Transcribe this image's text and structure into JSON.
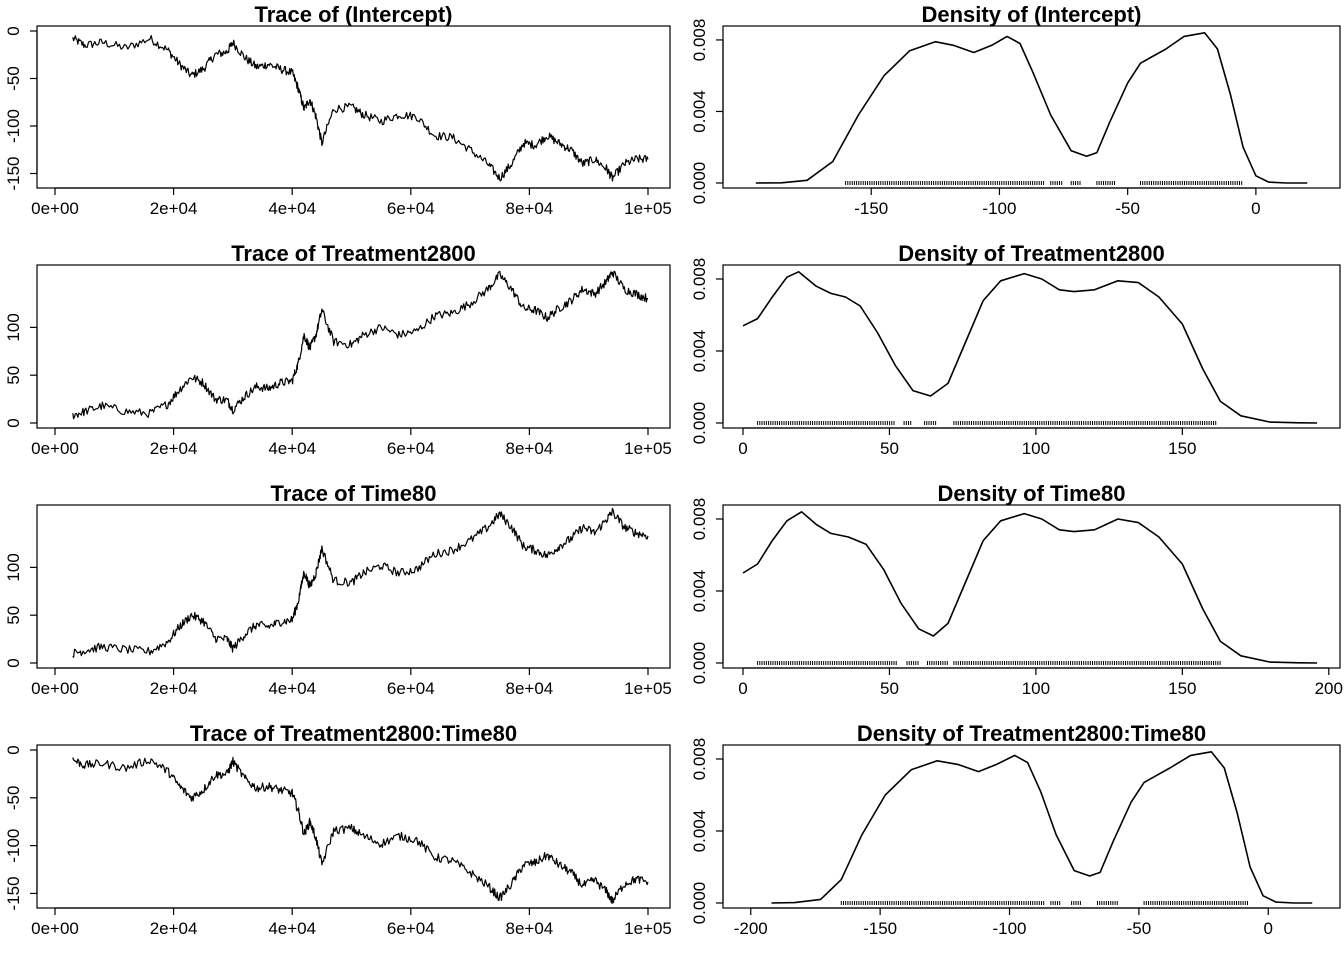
{
  "chart_data": [
    {
      "type": "line",
      "title": "Trace of (Intercept)",
      "xlim": [
        0,
        100000
      ],
      "ylim": [
        -160,
        0
      ],
      "xticks": [
        0,
        20000,
        40000,
        60000,
        80000,
        100000
      ],
      "xtick_labels": [
        "0e+00",
        "2e+04",
        "4e+04",
        "6e+04",
        "8e+04",
        "1e+05"
      ],
      "yticks": [
        0,
        -50,
        -100,
        -150
      ],
      "ytick_labels": [
        "0",
        "-50",
        "-100",
        "-150"
      ],
      "series": [
        {
          "x": [
            3000,
            5000,
            8000,
            12000,
            16000,
            19000,
            21000,
            23000,
            25000,
            27000,
            29000,
            30000,
            32000,
            34000,
            36000,
            38000,
            40000,
            41000,
            42000,
            43000,
            44000,
            45000,
            47000,
            50000,
            52000,
            55000,
            58000,
            61000,
            64000,
            67000,
            70000,
            73000,
            75000,
            77000,
            79000,
            81000,
            83000,
            85000,
            87000,
            89000,
            91000,
            93000,
            94000,
            96000,
            98000,
            100000
          ],
          "y": [
            -8,
            -15,
            -12,
            -18,
            -8,
            -20,
            -35,
            -47,
            -40,
            -25,
            -22,
            -12,
            -28,
            -38,
            -35,
            -40,
            -44,
            -60,
            -82,
            -72,
            -90,
            -118,
            -82,
            -80,
            -88,
            -95,
            -88,
            -90,
            -110,
            -112,
            -125,
            -140,
            -155,
            -140,
            -118,
            -120,
            -110,
            -118,
            -125,
            -140,
            -135,
            -145,
            -155,
            -140,
            -135,
            -135
          ]
        }
      ]
    },
    {
      "type": "area",
      "title": "Density of (Intercept)",
      "xlim": [
        -200,
        25
      ],
      "ylim": [
        0,
        0.0085
      ],
      "xticks": [
        -150,
        -100,
        -50,
        0
      ],
      "xtick_labels": [
        "-150",
        "-100",
        "-50",
        "0"
      ],
      "yticks": [
        0,
        0.004,
        0.008
      ],
      "ytick_labels": [
        "0.000",
        "0.004",
        "0.008"
      ],
      "series": [
        {
          "x": [
            -195,
            -185,
            -175,
            -165,
            -155,
            -145,
            -135,
            -125,
            -118,
            -110,
            -103,
            -97,
            -92,
            -87,
            -80,
            -72,
            -66,
            -62,
            -57,
            -50,
            -45,
            -40,
            -35,
            -28,
            -20,
            -15,
            -10,
            -5,
            0,
            5,
            12,
            20
          ],
          "y": [
            0,
            1e-05,
            0.00015,
            0.0012,
            0.0038,
            0.006,
            0.0074,
            0.0079,
            0.0077,
            0.0073,
            0.0077,
            0.0082,
            0.0078,
            0.0062,
            0.0038,
            0.0018,
            0.0015,
            0.0017,
            0.0034,
            0.0056,
            0.0067,
            0.0071,
            0.0075,
            0.0082,
            0.0084,
            0.0075,
            0.005,
            0.002,
            0.0004,
            5e-05,
            0,
            0
          ]
        }
      ],
      "rug_ranges": [
        [
          -160,
          -82
        ],
        [
          -80,
          -75
        ],
        [
          -72,
          -68
        ],
        [
          -62,
          -55
        ],
        [
          -45,
          -5
        ]
      ]
    },
    {
      "type": "line",
      "title": "Trace of Treatment2800",
      "xlim": [
        0,
        100000
      ],
      "ylim": [
        0,
        160
      ],
      "xticks": [
        0,
        20000,
        40000,
        60000,
        80000,
        100000
      ],
      "xtick_labels": [
        "0e+00",
        "2e+04",
        "4e+04",
        "6e+04",
        "8e+04",
        "1e+05"
      ],
      "yticks": [
        0,
        50,
        100
      ],
      "ytick_labels": [
        "0",
        "50",
        "100"
      ],
      "series": [
        {
          "x": [
            3000,
            5000,
            8000,
            12000,
            16000,
            19000,
            21000,
            23000,
            25000,
            27000,
            29000,
            30000,
            32000,
            34000,
            36000,
            38000,
            40000,
            41000,
            42000,
            43000,
            44000,
            45000,
            47000,
            50000,
            52000,
            55000,
            58000,
            61000,
            64000,
            67000,
            70000,
            73000,
            75000,
            77000,
            79000,
            81000,
            83000,
            85000,
            87000,
            89000,
            91000,
            93000,
            94000,
            96000,
            98000,
            100000
          ],
          "y": [
            8,
            12,
            18,
            12,
            10,
            20,
            35,
            48,
            42,
            25,
            24,
            14,
            28,
            38,
            36,
            42,
            44,
            62,
            92,
            78,
            92,
            118,
            85,
            82,
            92,
            100,
            92,
            96,
            112,
            115,
            125,
            140,
            155,
            140,
            120,
            118,
            110,
            120,
            128,
            140,
            135,
            148,
            158,
            140,
            135,
            130
          ]
        }
      ]
    },
    {
      "type": "area",
      "title": "Density of Treatment2800",
      "xlim": [
        0,
        197
      ],
      "ylim": [
        0,
        0.0085
      ],
      "xticks": [
        0,
        50,
        100,
        150
      ],
      "xtick_labels": [
        "0",
        "50",
        "100",
        "150"
      ],
      "yticks": [
        0,
        0.004,
        0.008
      ],
      "ytick_labels": [
        "0.000",
        "0.004",
        "0.008"
      ],
      "series": [
        {
          "x": [
            0,
            5,
            10,
            15,
            19,
            25,
            30,
            35,
            40,
            46,
            52,
            58,
            64,
            70,
            76,
            82,
            88,
            96,
            102,
            108,
            113,
            120,
            128,
            135,
            142,
            150,
            157,
            163,
            170,
            180,
            190,
            196
          ],
          "y": [
            0.0054,
            0.0058,
            0.007,
            0.0081,
            0.0084,
            0.0076,
            0.0072,
            0.007,
            0.0065,
            0.005,
            0.0032,
            0.0018,
            0.0015,
            0.0022,
            0.0045,
            0.0068,
            0.0079,
            0.0083,
            0.008,
            0.0074,
            0.0073,
            0.0074,
            0.0079,
            0.0078,
            0.007,
            0.0055,
            0.003,
            0.0012,
            0.0004,
            5e-05,
            1e-05,
            0
          ]
        }
      ],
      "rug_ranges": [
        [
          5,
          52
        ],
        [
          55,
          58
        ],
        [
          62,
          66
        ],
        [
          72,
          162
        ]
      ]
    },
    {
      "type": "line",
      "title": "Trace of Time80",
      "xlim": [
        0,
        100000
      ],
      "ylim": [
        0,
        160
      ],
      "xticks": [
        0,
        20000,
        40000,
        60000,
        80000,
        100000
      ],
      "xtick_labels": [
        "0e+00",
        "2e+04",
        "4e+04",
        "6e+04",
        "8e+04",
        "1e+05"
      ],
      "yticks": [
        0,
        50,
        100
      ],
      "ytick_labels": [
        "0",
        "50",
        "100"
      ],
      "series": [
        {
          "x": [
            3000,
            5000,
            8000,
            12000,
            16000,
            19000,
            21000,
            23000,
            25000,
            27000,
            29000,
            30000,
            32000,
            34000,
            36000,
            38000,
            40000,
            41000,
            42000,
            43000,
            44000,
            45000,
            47000,
            50000,
            52000,
            55000,
            58000,
            61000,
            64000,
            67000,
            70000,
            73000,
            75000,
            77000,
            79000,
            81000,
            83000,
            85000,
            87000,
            89000,
            91000,
            93000,
            94000,
            96000,
            98000,
            100000
          ],
          "y": [
            10,
            13,
            17,
            14,
            12,
            22,
            38,
            50,
            44,
            26,
            25,
            15,
            30,
            40,
            38,
            43,
            45,
            64,
            95,
            80,
            94,
            120,
            86,
            84,
            94,
            102,
            94,
            98,
            114,
            118,
            128,
            142,
            156,
            142,
            122,
            118,
            112,
            122,
            130,
            142,
            136,
            150,
            158,
            142,
            136,
            133
          ]
        }
      ]
    },
    {
      "type": "area",
      "title": "Density of Time80",
      "xlim": [
        0,
        197
      ],
      "ylim": [
        0,
        0.0085
      ],
      "xticks": [
        0,
        50,
        100,
        150,
        200
      ],
      "xtick_labels": [
        "0",
        "50",
        "100",
        "150",
        "200"
      ],
      "yticks": [
        0,
        0.004,
        0.008
      ],
      "ytick_labels": [
        "0.000",
        "0.004",
        "0.008"
      ],
      "series": [
        {
          "x": [
            0,
            5,
            10,
            15,
            20,
            25,
            30,
            36,
            42,
            48,
            54,
            60,
            65,
            70,
            76,
            82,
            88,
            96,
            102,
            108,
            113,
            120,
            128,
            135,
            142,
            150,
            157,
            163,
            170,
            180,
            190,
            196
          ],
          "y": [
            0.005,
            0.0055,
            0.0068,
            0.0079,
            0.0084,
            0.0077,
            0.0072,
            0.007,
            0.0066,
            0.0052,
            0.0033,
            0.0019,
            0.0015,
            0.0022,
            0.0045,
            0.0068,
            0.0079,
            0.0083,
            0.008,
            0.0074,
            0.0073,
            0.0074,
            0.008,
            0.0078,
            0.007,
            0.0055,
            0.003,
            0.0012,
            0.0004,
            5e-05,
            1e-05,
            0
          ]
        }
      ],
      "rug_ranges": [
        [
          5,
          53
        ],
        [
          56,
          60
        ],
        [
          63,
          70
        ],
        [
          72,
          163
        ]
      ]
    },
    {
      "type": "line",
      "title": "Trace of Treatment2800:Time80",
      "xlim": [
        0,
        100000
      ],
      "ylim": [
        -160,
        0
      ],
      "xticks": [
        0,
        20000,
        40000,
        60000,
        80000,
        100000
      ],
      "xtick_labels": [
        "0e+00",
        "2e+04",
        "4e+04",
        "6e+04",
        "8e+04",
        "1e+05"
      ],
      "yticks": [
        0,
        -50,
        -100,
        -150
      ],
      "ytick_labels": [
        "0",
        "-50",
        "-100",
        "-150"
      ],
      "series": [
        {
          "x": [
            3000,
            5000,
            8000,
            12000,
            16000,
            19000,
            21000,
            23000,
            25000,
            27000,
            29000,
            30000,
            32000,
            34000,
            36000,
            38000,
            40000,
            41000,
            42000,
            43000,
            44000,
            45000,
            47000,
            50000,
            52000,
            55000,
            58000,
            61000,
            64000,
            67000,
            70000,
            73000,
            75000,
            77000,
            79000,
            81000,
            83000,
            85000,
            87000,
            89000,
            91000,
            93000,
            94000,
            96000,
            98000,
            100000
          ],
          "y": [
            -10,
            -16,
            -14,
            -19,
            -10,
            -22,
            -38,
            -50,
            -42,
            -26,
            -25,
            -12,
            -30,
            -40,
            -38,
            -42,
            -45,
            -63,
            -88,
            -75,
            -92,
            -120,
            -84,
            -82,
            -90,
            -98,
            -90,
            -94,
            -112,
            -116,
            -128,
            -142,
            -155,
            -140,
            -120,
            -118,
            -110,
            -120,
            -128,
            -142,
            -136,
            -148,
            -158,
            -140,
            -135,
            -138
          ]
        }
      ]
    },
    {
      "type": "area",
      "title": "Density of Treatment2800:Time80",
      "xlim": [
        -203,
        20
      ],
      "ylim": [
        0,
        0.0085
      ],
      "xticks": [
        -200,
        -150,
        -100,
        -50,
        0
      ],
      "xtick_labels": [
        "-200",
        "-150",
        "-100",
        "-50",
        "0"
      ],
      "yticks": [
        0,
        0.004,
        0.008
      ],
      "ytick_labels": [
        "0.000",
        "0.004",
        "0.008"
      ],
      "series": [
        {
          "x": [
            -192,
            -183,
            -173,
            -165,
            -157,
            -148,
            -138,
            -128,
            -120,
            -112,
            -105,
            -98,
            -93,
            -88,
            -82,
            -75,
            -69,
            -65,
            -60,
            -53,
            -48,
            -43,
            -38,
            -30,
            -22,
            -17,
            -12,
            -7,
            -2,
            3,
            10,
            17
          ],
          "y": [
            0,
            2e-05,
            0.0002,
            0.0013,
            0.0038,
            0.006,
            0.0074,
            0.0079,
            0.0077,
            0.0073,
            0.0077,
            0.0082,
            0.0078,
            0.0062,
            0.0038,
            0.0018,
            0.0015,
            0.0017,
            0.0034,
            0.0056,
            0.0067,
            0.0071,
            0.0075,
            0.0082,
            0.0084,
            0.0075,
            0.005,
            0.002,
            0.0004,
            5e-05,
            0,
            0
          ]
        }
      ],
      "rug_ranges": [
        [
          -165,
          -86
        ],
        [
          -84,
          -80
        ],
        [
          -76,
          -72
        ],
        [
          -66,
          -58
        ],
        [
          -48,
          -8
        ]
      ]
    }
  ]
}
